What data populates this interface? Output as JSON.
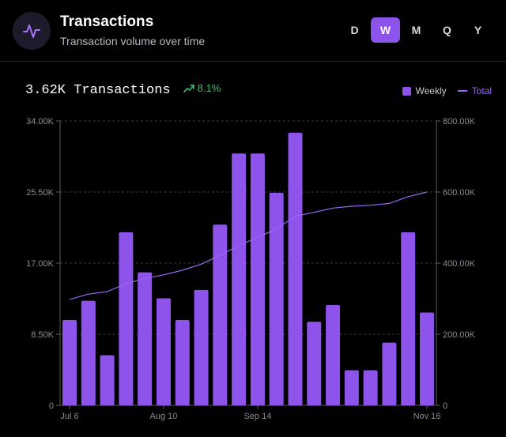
{
  "header": {
    "title": "Transactions",
    "subtitle": "Transaction volume over time",
    "icon": "activity-pulse-icon",
    "ranges": [
      {
        "label": "D",
        "active": false
      },
      {
        "label": "W",
        "active": true
      },
      {
        "label": "M",
        "active": false
      },
      {
        "label": "Q",
        "active": false
      },
      {
        "label": "Y",
        "active": false
      }
    ]
  },
  "summary": {
    "total": "3.62K Transactions",
    "change": "8.1%",
    "change_icon": "trend-up-icon"
  },
  "legend": {
    "weekly": "Weekly",
    "total": "Total"
  },
  "colors": {
    "bar": "#8e53ea",
    "line": "#9a66f2",
    "positive": "#3ec46d",
    "background": "#000000"
  },
  "chart_data": {
    "type": "bar",
    "x_tick_labels": [
      "Jul 6",
      "Aug 10",
      "Sep 14",
      "Nov 16"
    ],
    "x_tick_index": [
      0,
      5,
      10,
      19
    ],
    "left_axis": {
      "ticks": [
        0,
        8500,
        17000,
        25500,
        34000
      ],
      "tick_labels": [
        "0",
        "8.50K",
        "17.00K",
        "25.50K",
        "34.00K"
      ],
      "ylim": [
        0,
        34000
      ]
    },
    "right_axis": {
      "ticks": [
        0,
        200000,
        400000,
        600000,
        800000
      ],
      "tick_labels": [
        "0",
        "200.00K",
        "400.00K",
        "600.00K",
        "800.00K"
      ],
      "ylim": [
        0,
        800000
      ]
    },
    "grid": true,
    "legend_position": "top-right",
    "series": [
      {
        "name": "Weekly",
        "type": "bar",
        "axis": "left",
        "values": [
          10200,
          12500,
          6000,
          20700,
          15900,
          12800,
          10200,
          13800,
          21600,
          30100,
          30100,
          25400,
          32600,
          10000,
          12000,
          4200,
          4200,
          7500,
          20700,
          11100
        ]
      },
      {
        "name": "Total",
        "type": "line",
        "axis": "right",
        "values": [
          298000,
          313000,
          320000,
          342000,
          357000,
          367000,
          380000,
          397000,
          422000,
          450000,
          472000,
          497000,
          532000,
          543000,
          555000,
          560000,
          563000,
          568000,
          587000,
          600000
        ]
      }
    ]
  }
}
